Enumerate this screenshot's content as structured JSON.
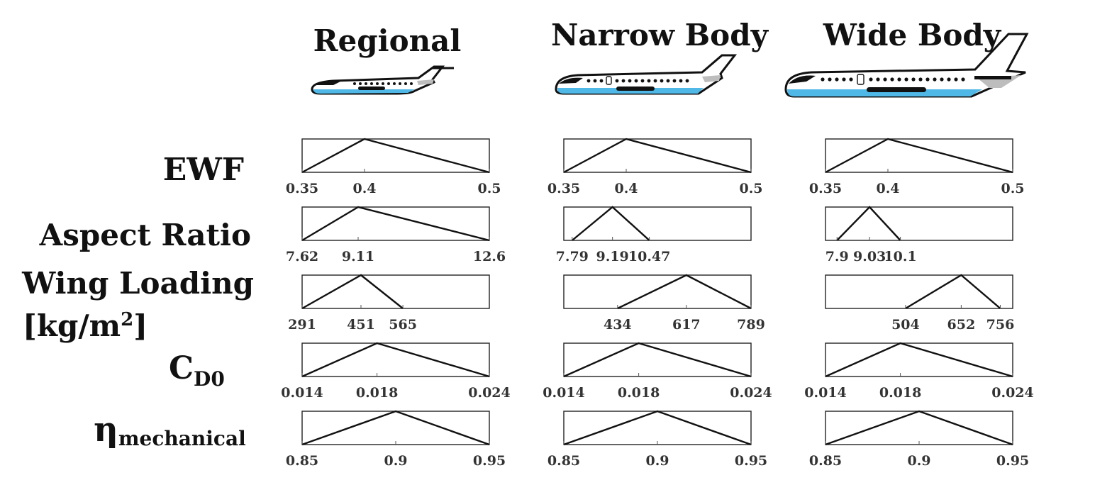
{
  "columns": [
    "Regional",
    "Narrow Body",
    "Wide Body"
  ],
  "rows": {
    "ewf": "EWF",
    "aspect_ratio": "Aspect Ratio",
    "wing_loading": "Wing Loading",
    "wing_loading_unit": "[kg/m",
    "wing_loading_unit_sup": "2",
    "wing_loading_unit_end": "]",
    "cd0_main": "C",
    "cd0_sub": "D0",
    "eta_main": "η",
    "eta_sub": "mechanical"
  },
  "aircraft_icons": [
    "regional-jet-icon",
    "narrow-body-jet-icon",
    "wide-body-jet-icon"
  ],
  "colors": {
    "belly": "#4fb8e6",
    "line": "#111111",
    "tail_shade": "#bdbdbd"
  },
  "chart_data": {
    "type": "line",
    "description_shape": "triangular distributions (min, mode, max) per parameter and aircraft class",
    "panels": [
      {
        "row": "EWF",
        "column": "Regional",
        "xlim": [
          0.35,
          0.5
        ],
        "points": [
          [
            0.35,
            0
          ],
          [
            0.4,
            1
          ],
          [
            0.5,
            0
          ]
        ],
        "ticks": [
          "0.35",
          "0.4",
          "0.5"
        ]
      },
      {
        "row": "EWF",
        "column": "Narrow Body",
        "xlim": [
          0.35,
          0.5
        ],
        "points": [
          [
            0.35,
            0
          ],
          [
            0.4,
            1
          ],
          [
            0.5,
            0
          ]
        ],
        "ticks": [
          "0.35",
          "0.4",
          "0.5"
        ]
      },
      {
        "row": "EWF",
        "column": "Wide Body",
        "xlim": [
          0.35,
          0.5
        ],
        "points": [
          [
            0.35,
            0
          ],
          [
            0.4,
            1
          ],
          [
            0.5,
            0
          ]
        ],
        "ticks": [
          "0.35",
          "0.4",
          "0.5"
        ]
      },
      {
        "row": "Aspect Ratio",
        "column": "Regional",
        "xlim": [
          7.62,
          12.6
        ],
        "points": [
          [
            7.62,
            0
          ],
          [
            9.11,
            1
          ],
          [
            12.6,
            0
          ]
        ],
        "ticks": [
          "7.62",
          "9.11",
          "12.6"
        ]
      },
      {
        "row": "Aspect Ratio",
        "column": "Narrow Body",
        "xlim": [
          7.5,
          14
        ],
        "points": [
          [
            7.79,
            0
          ],
          [
            9.19,
            1
          ],
          [
            10.47,
            0
          ]
        ],
        "ticks": [
          "7.79",
          "9.19",
          "10.47"
        ]
      },
      {
        "row": "Aspect Ratio",
        "column": "Wide Body",
        "xlim": [
          7.5,
          14
        ],
        "points": [
          [
            7.9,
            0
          ],
          [
            9.03,
            1
          ],
          [
            10.1,
            0
          ]
        ],
        "ticks": [
          "7.9",
          "9.03",
          "10.1"
        ]
      },
      {
        "row": "Wing Loading",
        "column": "Regional",
        "xlim": [
          291,
          800
        ],
        "points": [
          [
            291,
            0
          ],
          [
            451,
            1
          ],
          [
            565,
            0
          ]
        ],
        "ticks": [
          "291",
          "451",
          "565"
        ]
      },
      {
        "row": "Wing Loading",
        "column": "Narrow Body",
        "xlim": [
          291,
          789
        ],
        "points": [
          [
            434,
            0
          ],
          [
            617,
            1
          ],
          [
            789,
            0
          ]
        ],
        "ticks": [
          "434",
          "617",
          "789"
        ]
      },
      {
        "row": "Wing Loading",
        "column": "Wide Body",
        "xlim": [
          291,
          789
        ],
        "points": [
          [
            504,
            0
          ],
          [
            652,
            1
          ],
          [
            756,
            0
          ]
        ],
        "ticks": [
          "504",
          "652",
          "756"
        ]
      },
      {
        "row": "CD0",
        "column": "Regional",
        "xlim": [
          0.014,
          0.024
        ],
        "points": [
          [
            0.014,
            0
          ],
          [
            0.018,
            1
          ],
          [
            0.024,
            0
          ]
        ],
        "ticks": [
          "0.014",
          "0.018",
          "0.024"
        ]
      },
      {
        "row": "CD0",
        "column": "Narrow Body",
        "xlim": [
          0.014,
          0.024
        ],
        "points": [
          [
            0.014,
            0
          ],
          [
            0.018,
            1
          ],
          [
            0.024,
            0
          ]
        ],
        "ticks": [
          "0.014",
          "0.018",
          "0.024"
        ]
      },
      {
        "row": "CD0",
        "column": "Wide Body",
        "xlim": [
          0.014,
          0.024
        ],
        "points": [
          [
            0.014,
            0
          ],
          [
            0.018,
            1
          ],
          [
            0.024,
            0
          ]
        ],
        "ticks": [
          "0.014",
          "0.018",
          "0.024"
        ]
      },
      {
        "row": "eta_mechanical",
        "column": "Regional",
        "xlim": [
          0.85,
          0.95
        ],
        "points": [
          [
            0.85,
            0
          ],
          [
            0.9,
            1
          ],
          [
            0.95,
            0
          ]
        ],
        "ticks": [
          "0.85",
          "0.9",
          "0.95"
        ]
      },
      {
        "row": "eta_mechanical",
        "column": "Narrow Body",
        "xlim": [
          0.85,
          0.95
        ],
        "points": [
          [
            0.85,
            0
          ],
          [
            0.9,
            1
          ],
          [
            0.95,
            0
          ]
        ],
        "ticks": [
          "0.85",
          "0.9",
          "0.95"
        ]
      },
      {
        "row": "eta_mechanical",
        "column": "Wide Body",
        "xlim": [
          0.85,
          0.95
        ],
        "points": [
          [
            0.85,
            0
          ],
          [
            0.9,
            1
          ],
          [
            0.95,
            0
          ]
        ],
        "ticks": [
          "0.85",
          "0.9",
          "0.95"
        ]
      }
    ]
  }
}
